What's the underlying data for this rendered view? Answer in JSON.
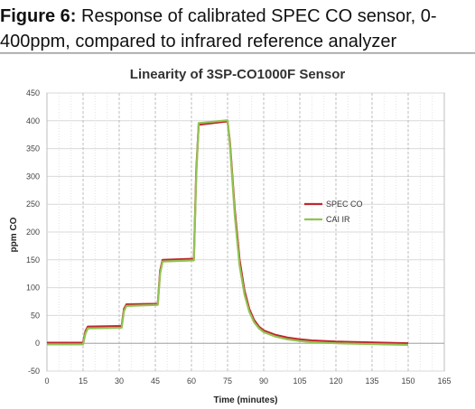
{
  "caption": {
    "label": "Figure 6:",
    "text_line1": " Response of calibrated SPEC CO sensor, 0-",
    "text_line2": "400ppm, compared to infrared reference analyzer"
  },
  "chart_data": {
    "type": "line",
    "title": "Linearity of 3SP-CO1000F Sensor",
    "xlabel": "Time (minutes)",
    "ylabel": "ppm CO",
    "xlim": [
      0,
      165
    ],
    "ylim": [
      -50,
      450
    ],
    "xticks": [
      0,
      15,
      30,
      45,
      60,
      75,
      90,
      105,
      120,
      135,
      150,
      165
    ],
    "yticks": [
      -50,
      0,
      50,
      100,
      150,
      200,
      250,
      300,
      350,
      400,
      450
    ],
    "grid": true,
    "legend_position": "right-center",
    "series": [
      {
        "name": "SPEC CO",
        "color": "#c0272d",
        "x": [
          0,
          15,
          16,
          17,
          31,
          32,
          33,
          46,
          47,
          48,
          61,
          62,
          63,
          75,
          76,
          78,
          80,
          82,
          84,
          86,
          88,
          90,
          95,
          100,
          105,
          110,
          120,
          130,
          140,
          150
        ],
        "y": [
          1,
          1,
          22,
          30,
          31,
          62,
          70,
          71,
          130,
          150,
          152,
          310,
          393,
          399,
          360,
          240,
          150,
          95,
          62,
          42,
          30,
          23,
          15,
          10,
          7,
          5,
          3,
          2,
          1,
          0
        ]
      },
      {
        "name": "CAI IR",
        "color": "#92c353",
        "x": [
          0,
          15,
          16,
          17,
          31,
          32,
          33,
          46,
          47,
          48,
          61,
          62,
          63,
          75,
          76,
          78,
          80,
          82,
          84,
          86,
          88,
          90,
          95,
          100,
          105,
          110,
          120,
          130,
          140,
          150
        ],
        "y": [
          -2,
          -2,
          18,
          27,
          28,
          58,
          67,
          69,
          125,
          147,
          149,
          300,
          396,
          401,
          355,
          230,
          140,
          88,
          57,
          38,
          27,
          20,
          12,
          7,
          4,
          2,
          0,
          -1,
          -2,
          -3
        ]
      }
    ]
  }
}
